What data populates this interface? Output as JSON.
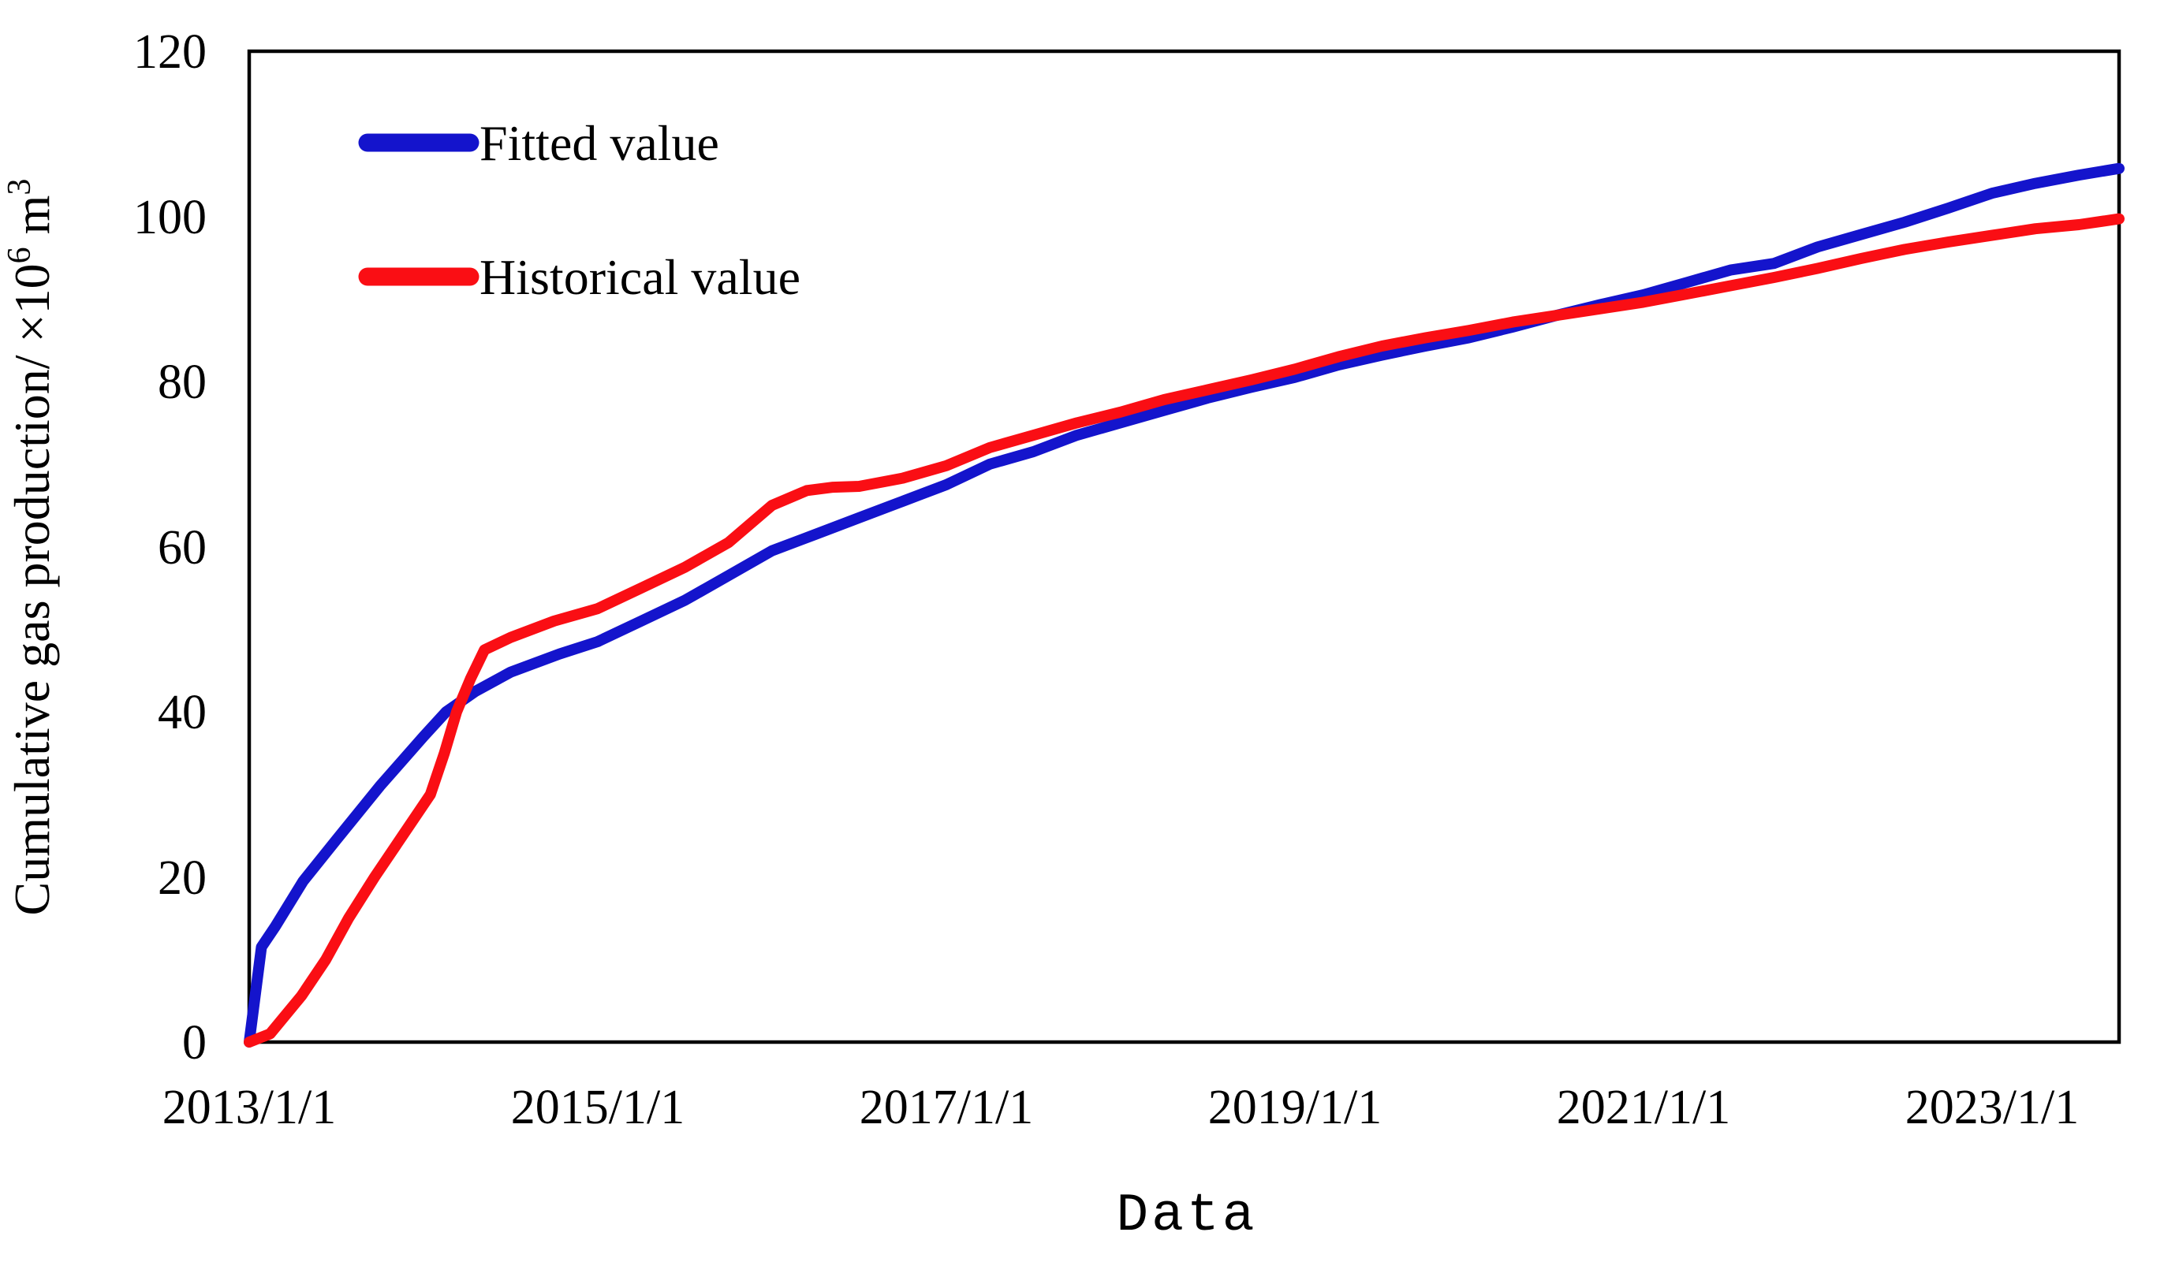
{
  "chart_data": {
    "type": "line",
    "title": "",
    "x_axis": {
      "label": "Data",
      "tick_labels": [
        "2013/1/1",
        "2015/1/1",
        "2017/1/1",
        "2019/1/1",
        "2021/1/1",
        "2023/1/1"
      ],
      "tick_years": [
        2013,
        2015,
        2017,
        2019,
        2021,
        2023
      ],
      "range_years": [
        2013,
        2023.73
      ]
    },
    "y_axis": {
      "label_parts": {
        "prefix": "Cumulative gas production/ ×10",
        "sup1": "6",
        "mid": " m",
        "sup2": "3"
      },
      "tick_labels": [
        "0",
        "20",
        "40",
        "60",
        "80",
        "100",
        "120"
      ],
      "tick_values": [
        0,
        20,
        40,
        60,
        80,
        100,
        120
      ],
      "range": [
        0,
        120
      ]
    },
    "grid": "off",
    "legend_position": "inside-top-left",
    "series": [
      {
        "name": "Fitted value",
        "color": "#1414CC",
        "points": [
          [
            2013.0,
            0
          ],
          [
            2013.07,
            11.5
          ],
          [
            2013.15,
            14
          ],
          [
            2013.31,
            19.5
          ],
          [
            2013.5,
            24.5
          ],
          [
            2013.75,
            31
          ],
          [
            2014.0,
            37
          ],
          [
            2014.13,
            40
          ],
          [
            2014.3,
            42.5
          ],
          [
            2014.5,
            44.8
          ],
          [
            2014.78,
            47
          ],
          [
            2015.0,
            48.5
          ],
          [
            2015.25,
            51
          ],
          [
            2015.5,
            53.5
          ],
          [
            2015.75,
            56.5
          ],
          [
            2016.0,
            59.5
          ],
          [
            2016.25,
            61.5
          ],
          [
            2016.5,
            63.5
          ],
          [
            2016.75,
            65.5
          ],
          [
            2017.0,
            67.5
          ],
          [
            2017.25,
            70
          ],
          [
            2017.5,
            71.5
          ],
          [
            2017.75,
            73.5
          ],
          [
            2018.0,
            75
          ],
          [
            2018.25,
            76.5
          ],
          [
            2018.5,
            78
          ],
          [
            2018.75,
            79.3
          ],
          [
            2019.0,
            80.5
          ],
          [
            2019.25,
            82
          ],
          [
            2019.5,
            83.2
          ],
          [
            2019.75,
            84.3
          ],
          [
            2020.0,
            85.3
          ],
          [
            2020.25,
            86.6
          ],
          [
            2020.5,
            88
          ],
          [
            2020.75,
            89.3
          ],
          [
            2021.0,
            90.5
          ],
          [
            2021.25,
            92
          ],
          [
            2021.5,
            93.5
          ],
          [
            2021.75,
            94.3
          ],
          [
            2022.0,
            96.3
          ],
          [
            2022.25,
            97.8
          ],
          [
            2022.5,
            99.3
          ],
          [
            2022.75,
            101
          ],
          [
            2023.0,
            102.8
          ],
          [
            2023.25,
            104
          ],
          [
            2023.5,
            105
          ],
          [
            2023.73,
            105.8
          ]
        ]
      },
      {
        "name": "Historical value",
        "color": "#FA0E14",
        "points": [
          [
            2013.0,
            0
          ],
          [
            2013.12,
            1
          ],
          [
            2013.3,
            5.6
          ],
          [
            2013.44,
            10
          ],
          [
            2013.57,
            15
          ],
          [
            2013.72,
            20
          ],
          [
            2013.88,
            25
          ],
          [
            2014.04,
            30
          ],
          [
            2014.12,
            35
          ],
          [
            2014.19,
            40
          ],
          [
            2014.27,
            44
          ],
          [
            2014.35,
            47.5
          ],
          [
            2014.5,
            49
          ],
          [
            2014.75,
            51
          ],
          [
            2015.0,
            52.5
          ],
          [
            2015.25,
            55
          ],
          [
            2015.5,
            57.5
          ],
          [
            2015.75,
            60.5
          ],
          [
            2016.0,
            65
          ],
          [
            2016.2,
            66.8
          ],
          [
            2016.35,
            67.2
          ],
          [
            2016.5,
            67.3
          ],
          [
            2016.75,
            68.3
          ],
          [
            2017.0,
            69.8
          ],
          [
            2017.25,
            72
          ],
          [
            2017.5,
            73.5
          ],
          [
            2017.75,
            75
          ],
          [
            2018.0,
            76.3
          ],
          [
            2018.25,
            77.8
          ],
          [
            2018.5,
            79
          ],
          [
            2018.75,
            80.2
          ],
          [
            2019.0,
            81.5
          ],
          [
            2019.25,
            83
          ],
          [
            2019.5,
            84.3
          ],
          [
            2019.75,
            85.3
          ],
          [
            2020.0,
            86.2
          ],
          [
            2020.25,
            87.2
          ],
          [
            2020.5,
            88
          ],
          [
            2020.75,
            88.8
          ],
          [
            2021.0,
            89.6
          ],
          [
            2021.25,
            90.6
          ],
          [
            2021.5,
            91.6
          ],
          [
            2021.75,
            92.6
          ],
          [
            2022.0,
            93.7
          ],
          [
            2022.25,
            94.9
          ],
          [
            2022.5,
            96
          ],
          [
            2022.75,
            96.9
          ],
          [
            2023.0,
            97.7
          ],
          [
            2023.25,
            98.5
          ],
          [
            2023.5,
            99
          ],
          [
            2023.73,
            99.7
          ]
        ]
      }
    ]
  }
}
